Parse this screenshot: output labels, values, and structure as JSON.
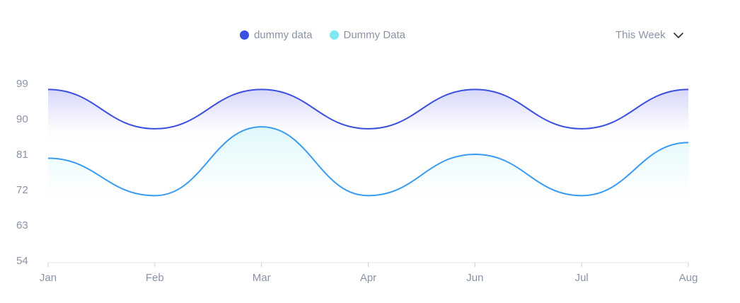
{
  "legend": {
    "items": [
      {
        "label": "dummy data",
        "color": "#3b4fe0"
      },
      {
        "label": "Dummy Data",
        "color": "#7ee8f2"
      }
    ]
  },
  "period_select": {
    "label": "This Week",
    "icon": "chevron-down-icon"
  },
  "colors": {
    "series1_line": "#3b4fe0",
    "series2_line": "#3b9bf0",
    "series1_fill": "#6f73e8",
    "series2_fill": "#8fe6f0",
    "axis": "#e3e6ec",
    "tick_text": "#8a93a6"
  },
  "chart_data": {
    "type": "area",
    "categories": [
      "Jan",
      "Feb",
      "Mar",
      "Apr",
      "Jun",
      "Jul",
      "Aug"
    ],
    "series": [
      {
        "name": "dummy data",
        "values": [
          97.5,
          87.5,
          97.5,
          87.5,
          97.5,
          87.5,
          97.5
        ]
      },
      {
        "name": "Dummy Data",
        "values": [
          80,
          70.5,
          88,
          70.5,
          81,
          70.5,
          84
        ]
      }
    ],
    "yticks": [
      "99",
      "90",
      "81",
      "72",
      "63",
      "54"
    ],
    "ylim": [
      54,
      99
    ],
    "grid": false,
    "legend_position": "top"
  }
}
